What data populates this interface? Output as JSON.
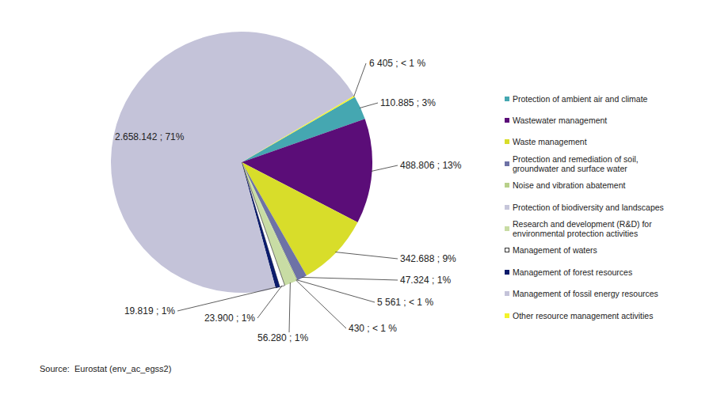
{
  "chart_data": {
    "type": "pie",
    "categories": [
      "Protection of ambient air and climate",
      "Wastewater management",
      "Waste management",
      "Protection and remediation of soil, groundwater and surface water",
      "Noise and vibration abatement",
      "Protection of biodiversity and landscapes",
      "Research and development (R&D) for environmental protection activities",
      "Management of waters",
      "Management of forest resources",
      "Management of fossil energy resources",
      "Other resource management activities"
    ],
    "values": [
      110885,
      488806,
      342688,
      47324,
      5561,
      430,
      56280,
      23900,
      19819,
      2658142,
      6405
    ],
    "value_labels": [
      "110.885 ; 3%",
      "488.806 ; 13%",
      "342.688 ; 9%",
      "47.324 ; 1%",
      "5 561 ; < 1 %",
      "430 ; < 1 %",
      "56.280 ; 1%",
      "23.900 ; 1%",
      "19.819 ; 1%",
      "2.658.142 ; 71%",
      "6 405 ; < 1 %"
    ],
    "colors": [
      "#45a7b1",
      "#5b0d78",
      "#d8dd2a",
      "#6e72a6",
      "#b8d08a",
      "#c6c6da",
      "#c8dca4",
      "#ffffff",
      "#0b1b6b",
      "#c4c3d9",
      "#f3f32a"
    ],
    "data_labels": true,
    "legend": "right",
    "source": "Source:  Eurostat (env_ac_egss2)"
  }
}
